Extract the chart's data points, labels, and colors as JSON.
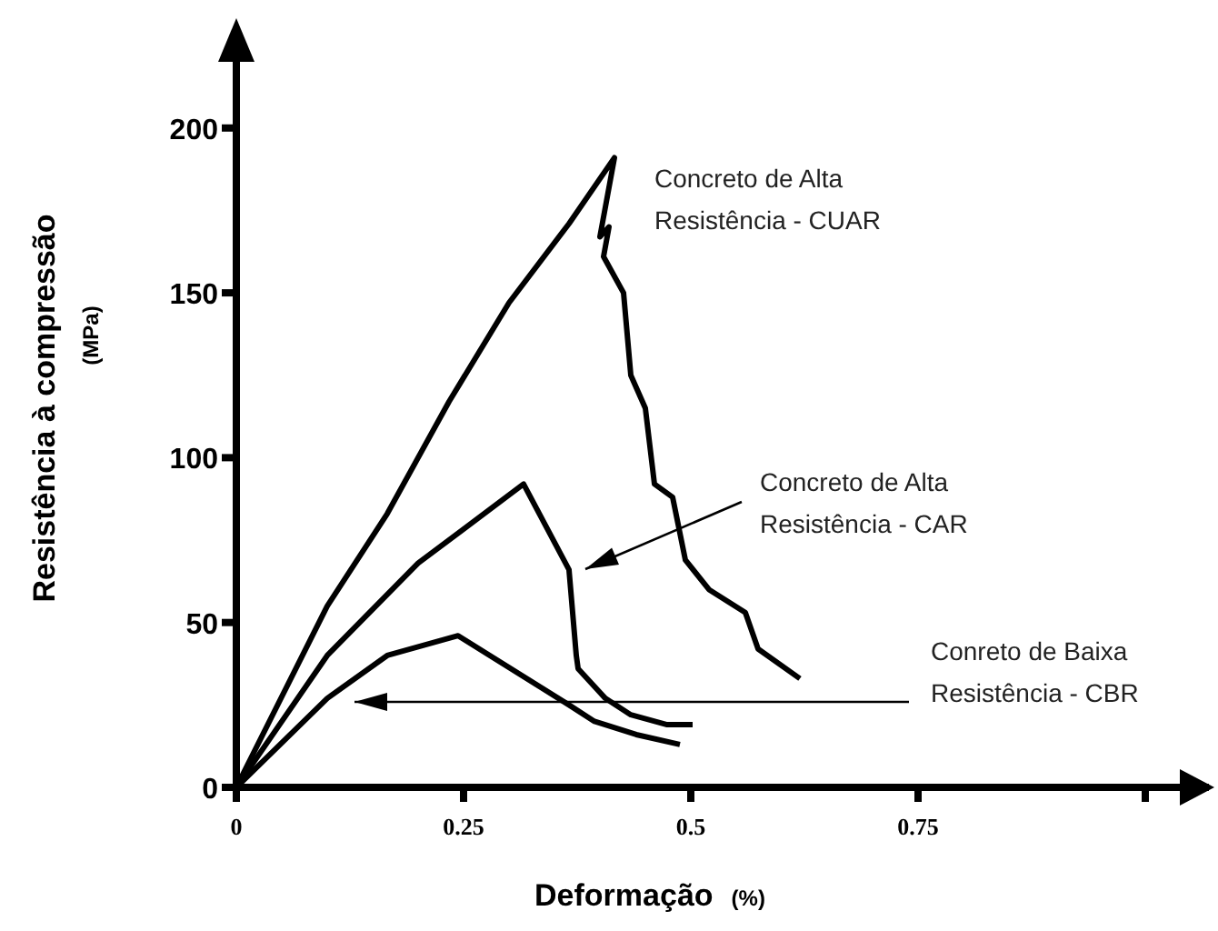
{
  "chart_data": {
    "type": "line",
    "xlabel": "Deformação (%)",
    "ylabel": "Resistência à compressão (MPa)",
    "xlim": [
      0,
      1.07
    ],
    "xticks": [
      0,
      0.25,
      0.5,
      0.75,
      {
        "value": 1,
        "label": null
      }
    ],
    "ylim": [
      0,
      230
    ],
    "yticks": [
      0,
      50,
      100,
      150,
      200
    ],
    "marker": "none",
    "line_style": "solid",
    "series": [
      {
        "name": "Concreto de Alta\nResistência - CUAR",
        "color": "#000000",
        "x": [
          0,
          0.1,
          0.166,
          0.234,
          0.3,
          0.366,
          0.416,
          0.4,
          0.41,
          0.404,
          0.426,
          0.434,
          0.45,
          0.46,
          0.48,
          0.494,
          0.52,
          0.56,
          0.574,
          0.62
        ],
        "values": [
          0,
          55,
          83,
          117,
          147,
          171,
          191,
          167,
          170,
          161,
          150,
          125,
          115,
          92,
          88,
          69,
          60,
          53,
          42,
          33
        ]
      },
      {
        "name": "Concreto de Alta\nResistência - CAR",
        "color": "#000000",
        "x": [
          0,
          0.1,
          0.2,
          0.316,
          0.366,
          0.374,
          0.376,
          0.406,
          0.434,
          0.474,
          0.502
        ],
        "values": [
          0,
          40,
          68,
          92,
          66,
          40,
          36,
          27,
          22,
          19,
          19
        ]
      },
      {
        "name": "Conreto de Baixa\nResistência - CBR",
        "color": "#000000",
        "x": [
          0,
          0.1,
          0.166,
          0.244,
          0.366,
          0.394,
          0.44,
          0.488
        ],
        "values": [
          0,
          27,
          40,
          46,
          25,
          20,
          16,
          13
        ]
      }
    ]
  }
}
